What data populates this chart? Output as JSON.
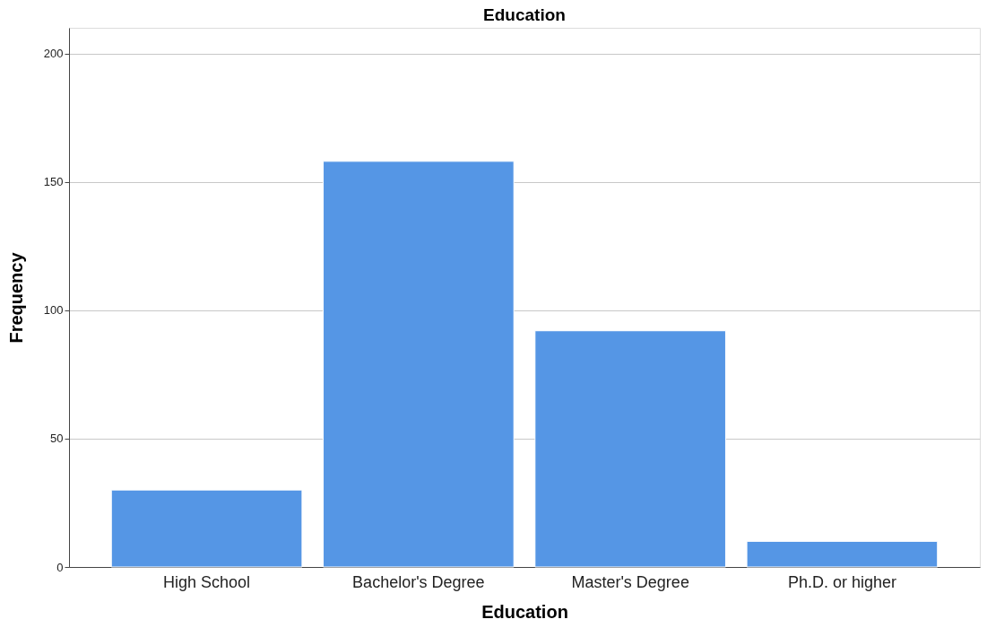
{
  "chart_data": {
    "type": "bar",
    "title": "Education",
    "xlabel": "Education",
    "ylabel": "Frequency",
    "categories": [
      "High School",
      "Bachelor's Degree",
      "Master's Degree",
      "Ph.D. or higher"
    ],
    "values": [
      30,
      158,
      92,
      10
    ],
    "color": "#5596e5",
    "ylim": [
      0,
      210
    ],
    "yticks": [
      0,
      50,
      100,
      150,
      200
    ],
    "grid": "y"
  }
}
